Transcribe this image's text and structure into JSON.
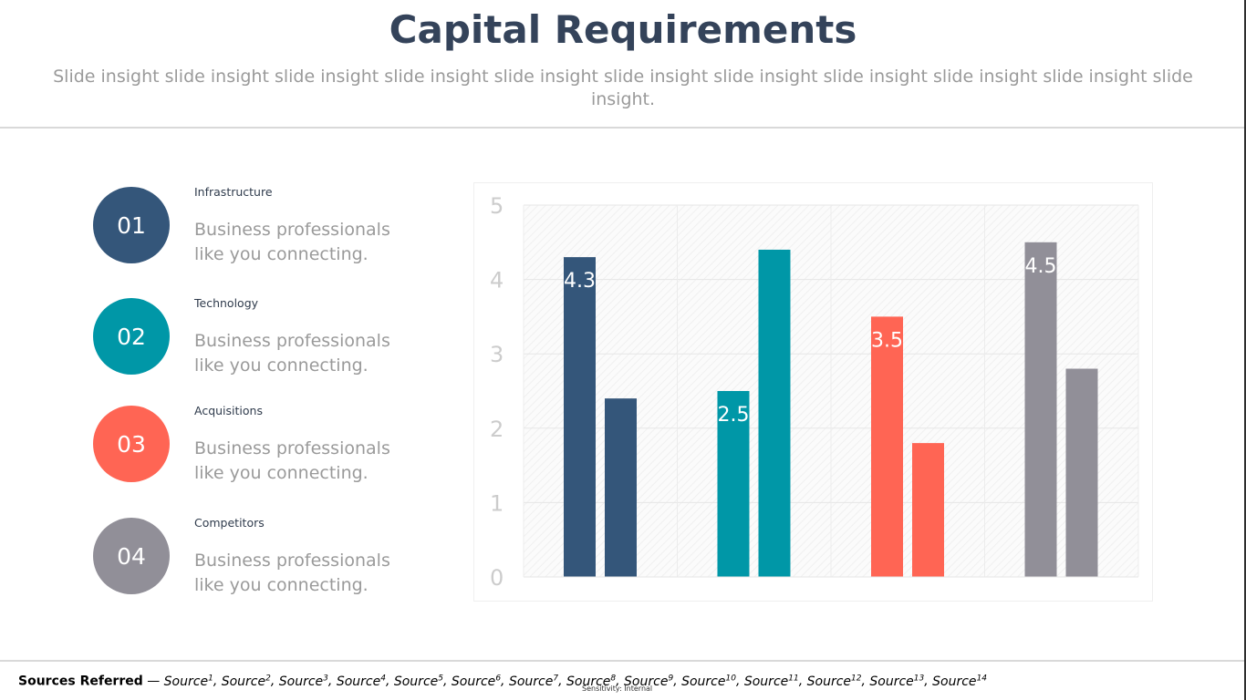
{
  "slide": {
    "title": "Capital Requirements",
    "subtitle": "Slide insight slide insight slide insight slide insight slide insight slide insight slide insight slide insight slide insight slide insight slide insight."
  },
  "items": [
    {
      "number": "01",
      "heading": "Infrastructure",
      "text": "Business professionals like you connecting.",
      "color": "#34567a"
    },
    {
      "number": "02",
      "heading": "Technology",
      "text": "Business professionals like you connecting.",
      "color": "#0097a7"
    },
    {
      "number": "03",
      "heading": "Acquisitions",
      "text": "Business professionals like you connecting.",
      "color": "#ff6554"
    },
    {
      "number": "04",
      "heading": "Competitors",
      "text": "Business professionals like you connecting.",
      "color": "#918f98"
    }
  ],
  "chart_data": {
    "type": "bar",
    "categories": [
      "Infrastructure",
      "Technology",
      "Acquisitions",
      "Competitors"
    ],
    "series": [
      {
        "values": [
          4.3,
          2.5,
          3.5,
          4.5
        ]
      },
      {
        "values": [
          2.4,
          4.4,
          1.8,
          2.8
        ]
      }
    ],
    "bar_colors": [
      "#34567a",
      "#0097a7",
      "#ff6554",
      "#918f98"
    ],
    "data_labels": [
      "4.3",
      "2.5",
      "3.5",
      "4.5"
    ],
    "ylim": [
      0,
      5
    ],
    "yticks": [
      "0",
      "1",
      "2",
      "3",
      "4",
      "5"
    ],
    "grid": true,
    "legend": "none"
  },
  "footer": {
    "lead": "Sources Referred",
    "separator": " — ",
    "sources": [
      {
        "label": "Source",
        "sup": "1"
      },
      {
        "label": "Source",
        "sup": "2"
      },
      {
        "label": "Source",
        "sup": "3"
      },
      {
        "label": "Source",
        "sup": "4"
      },
      {
        "label": "Source",
        "sup": "5"
      },
      {
        "label": "Source",
        "sup": "6"
      },
      {
        "label": "Source",
        "sup": "7"
      },
      {
        "label": "Source",
        "sup": "8"
      },
      {
        "label": "Source",
        "sup": "9"
      },
      {
        "label": "Source",
        "sup": "10"
      },
      {
        "label": "Source",
        "sup": "11"
      },
      {
        "label": "Source",
        "sup": "12"
      },
      {
        "label": "Source",
        "sup": "13"
      },
      {
        "label": "Source",
        "sup": "14"
      }
    ],
    "sensitivity": "Sensitivity: Internal"
  }
}
